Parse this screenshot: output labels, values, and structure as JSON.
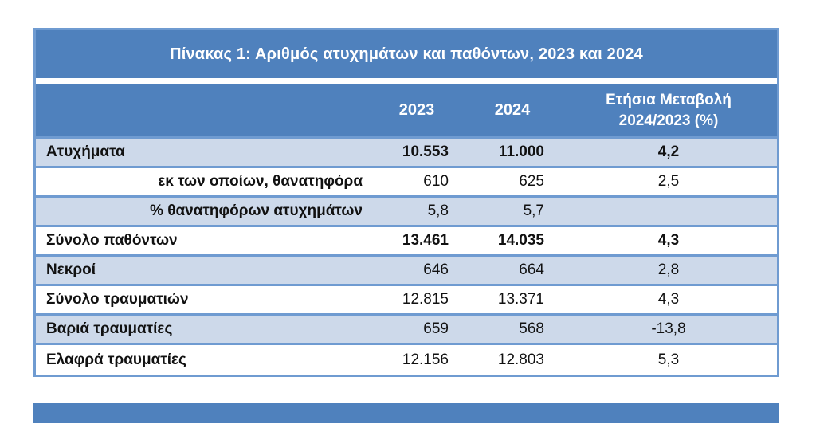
{
  "table": {
    "title": "Πίνακας 1: Αριθμός ατυχημάτων και παθόντων, 2023 και 2024",
    "header": {
      "col_2023": "2023",
      "col_2024": "2024",
      "col_change_line1": "Ετήσια Μεταβολή",
      "col_change_line2": "2024/2023 (%)"
    },
    "rows": [
      {
        "label": "Ατυχήματα",
        "y2023": "10.553",
        "y2024": "11.000",
        "change": "4,2"
      },
      {
        "label": "εκ των οποίων, θανατηφόρα",
        "y2023": "610",
        "y2024": "625",
        "change": "2,5"
      },
      {
        "label": "% θανατηφόρων ατυχημάτων",
        "y2023": "5,8",
        "y2024": "5,7",
        "change": ""
      },
      {
        "label": "Σύνολο παθόντων",
        "y2023": "13.461",
        "y2024": "14.035",
        "change": "4,3"
      },
      {
        "label": "Νεκροί",
        "y2023": "646",
        "y2024": "664",
        "change": "2,8"
      },
      {
        "label": "Σύνολο τραυματιών",
        "y2023": "12.815",
        "y2024": "13.371",
        "change": "4,3"
      },
      {
        "label": "Βαριά τραυματίες",
        "y2023": "659",
        "y2024": "568",
        "change": "-13,8"
      },
      {
        "label": "Ελαφρά τραυματίες",
        "y2023": "12.156",
        "y2024": "12.803",
        "change": "5,3"
      }
    ],
    "colors": {
      "header_blue": "#4f81bd",
      "row_light_blue": "#cdd9ea",
      "border_blue": "#6f9bd1",
      "header_text": "#ffffff",
      "body_text": "#111111"
    }
  },
  "chart_data": {
    "type": "table",
    "title": "Πίνακας 1: Αριθμός ατυχημάτων και παθόντων, 2023 και 2024",
    "columns": [
      "",
      "2023",
      "2024",
      "Ετήσια Μεταβολή 2024/2023 (%)"
    ],
    "rows": [
      [
        "Ατυχήματα",
        10553,
        11000,
        4.2
      ],
      [
        "εκ των οποίων, θανατηφόρα",
        610,
        625,
        2.5
      ],
      [
        "% θανατηφόρων ατυχημάτων",
        5.8,
        5.7,
        null
      ],
      [
        "Σύνολο παθόντων",
        13461,
        14035,
        4.3
      ],
      [
        "Νεκροί",
        646,
        664,
        2.8
      ],
      [
        "Σύνολο τραυματιών",
        12815,
        13371,
        4.3
      ],
      [
        "Βαριά τραυματίες",
        659,
        568,
        -13.8
      ],
      [
        "Ελαφρά τραυματίες",
        12156,
        12803,
        5.3
      ]
    ]
  }
}
